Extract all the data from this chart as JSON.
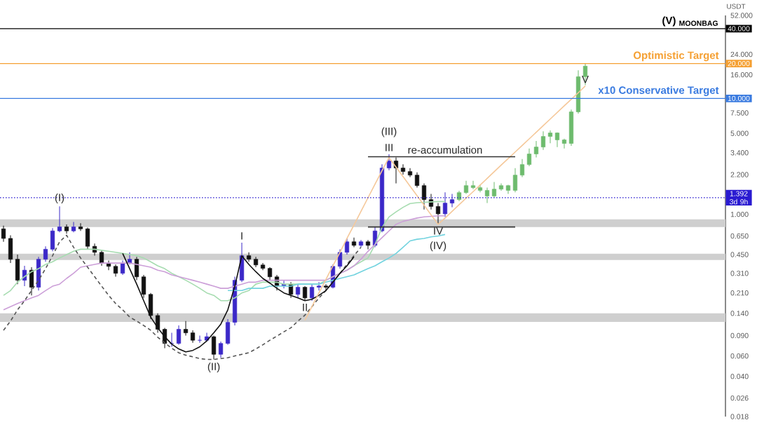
{
  "chart_data": {
    "type": "candlestick",
    "log": "y",
    "tick_labels": "y",
    "categories": [
      null,
      null,
      null,
      null,
      null,
      null,
      null,
      null,
      null,
      null,
      null,
      null,
      null,
      null,
      null,
      null,
      null,
      null,
      null,
      null,
      null,
      null,
      null,
      null,
      null,
      null,
      null,
      null,
      null,
      null,
      null,
      null,
      null,
      null,
      null,
      null,
      null,
      null,
      null,
      null,
      null,
      null,
      null,
      null,
      null,
      null,
      null,
      null,
      null,
      null,
      null,
      null,
      null,
      null,
      null,
      null,
      null,
      null,
      null,
      null,
      null,
      null,
      null,
      null,
      null,
      null,
      null,
      null,
      null,
      null,
      null,
      null,
      null,
      null,
      null,
      null,
      null,
      null,
      null,
      null,
      null,
      null,
      null,
      null
    ],
    "ylim": [
      0.018,
      52
    ],
    "yticks": [
      {
        "value": 0.018,
        "label": "0.018"
      },
      {
        "value": 0.026,
        "label": "0.026"
      },
      {
        "value": 0.04,
        "label": "0.040"
      },
      {
        "value": 0.06,
        "label": "0.060"
      },
      {
        "value": 0.09,
        "label": "0.090"
      },
      {
        "value": 0.14,
        "label": "0.140"
      },
      {
        "value": 0.21,
        "label": "0.210"
      },
      {
        "value": 0.31,
        "label": "0.310"
      },
      {
        "value": 0.45,
        "label": "0.450"
      },
      {
        "value": 0.65,
        "label": "0.650"
      },
      {
        "value": 1,
        "label": "1.000"
      },
      {
        "value": 2.2,
        "label": "2.200"
      },
      {
        "value": 3.4,
        "label": "3.400"
      },
      {
        "value": 5,
        "label": "5.000"
      },
      {
        "value": 7.5,
        "label": "7.500"
      },
      {
        "value": 16,
        "label": "16.000"
      },
      {
        "value": 24,
        "label": "24.000"
      },
      {
        "value": 52,
        "label": "52.000"
      }
    ],
    "bands": [
      {
        "axis": "y",
        "from": 0.778,
        "to": 0.907,
        "color": "#cfcfcf"
      },
      {
        "axis": "y",
        "from": 0.404,
        "to": 0.458,
        "color": "#cfcfcf"
      },
      {
        "axis": "y",
        "from": 0.118,
        "to": 0.14,
        "color": "#cfcfcf"
      }
    ],
    "ohlc": [
      [
        0.75,
        0.8,
        0.58,
        0.62
      ],
      [
        0.62,
        0.66,
        0.38,
        0.41
      ],
      [
        0.41,
        0.45,
        0.25,
        0.27
      ],
      [
        0.27,
        0.36,
        0.24,
        0.33
      ],
      [
        0.33,
        0.35,
        0.2,
        0.235
      ],
      [
        0.235,
        0.43,
        0.22,
        0.41
      ],
      [
        0.41,
        0.53,
        0.39,
        0.5
      ],
      [
        0.5,
        0.76,
        0.48,
        0.72
      ],
      [
        0.72,
        1.17,
        0.7,
        0.78
      ],
      [
        0.78,
        0.82,
        0.68,
        0.72
      ],
      [
        0.72,
        0.86,
        0.7,
        0.78
      ],
      [
        0.78,
        0.84,
        0.72,
        0.75
      ],
      [
        0.75,
        0.77,
        0.5,
        0.53
      ],
      [
        0.53,
        0.56,
        0.44,
        0.47
      ],
      [
        0.47,
        0.49,
        0.36,
        0.38
      ],
      [
        0.38,
        0.4,
        0.33,
        0.356
      ],
      [
        0.356,
        0.37,
        0.29,
        0.31
      ],
      [
        0.31,
        0.4,
        0.3,
        0.38
      ],
      [
        0.38,
        0.47,
        0.37,
        0.41
      ],
      [
        0.41,
        0.43,
        0.27,
        0.289
      ],
      [
        0.289,
        0.3,
        0.19,
        0.204
      ],
      [
        0.204,
        0.21,
        0.125,
        0.134
      ],
      [
        0.134,
        0.14,
        0.095,
        0.102
      ],
      [
        0.102,
        0.105,
        0.07,
        0.077
      ],
      [
        0.077,
        0.095,
        0.072,
        0.077
      ],
      [
        0.077,
        0.11,
        0.075,
        0.102
      ],
      [
        0.102,
        0.12,
        0.09,
        0.095
      ],
      [
        0.095,
        0.1,
        0.078,
        0.082
      ],
      [
        0.082,
        0.09,
        0.078,
        0.082
      ],
      [
        0.082,
        0.095,
        0.08,
        0.088
      ],
      [
        0.088,
        0.09,
        0.056,
        0.062
      ],
      [
        0.062,
        0.08,
        0.058,
        0.077
      ],
      [
        0.077,
        0.125,
        0.075,
        0.117
      ],
      [
        0.117,
        0.29,
        0.11,
        0.27
      ],
      [
        0.27,
        0.57,
        0.26,
        0.44
      ],
      [
        0.44,
        0.47,
        0.39,
        0.41
      ],
      [
        0.41,
        0.43,
        0.35,
        0.366
      ],
      [
        0.366,
        0.38,
        0.33,
        0.342
      ],
      [
        0.342,
        0.35,
        0.27,
        0.289
      ],
      [
        0.289,
        0.3,
        0.22,
        0.241
      ],
      [
        0.241,
        0.27,
        0.23,
        0.25
      ],
      [
        0.25,
        0.26,
        0.19,
        0.204
      ],
      [
        0.204,
        0.25,
        0.19,
        0.235
      ],
      [
        0.235,
        0.24,
        0.18,
        0.19
      ],
      [
        0.19,
        0.25,
        0.18,
        0.235
      ],
      [
        0.235,
        0.26,
        0.22,
        0.241
      ],
      [
        0.241,
        0.25,
        0.22,
        0.235
      ],
      [
        0.235,
        0.37,
        0.23,
        0.356
      ],
      [
        0.356,
        0.5,
        0.34,
        0.47
      ],
      [
        0.47,
        0.62,
        0.45,
        0.58
      ],
      [
        0.58,
        0.63,
        0.52,
        0.54
      ],
      [
        0.54,
        0.6,
        0.52,
        0.58
      ],
      [
        0.58,
        0.6,
        0.5,
        0.54
      ],
      [
        0.54,
        0.78,
        0.52,
        0.72
      ],
      [
        0.72,
        2.7,
        0.7,
        2.51
      ],
      [
        2.51,
        3.3,
        2.4,
        2.89
      ],
      [
        2.89,
        3.1,
        1.85,
        2.51
      ],
      [
        2.51,
        2.7,
        2.2,
        2.34
      ],
      [
        2.34,
        2.5,
        2.1,
        2.18
      ],
      [
        2.18,
        2.3,
        1.7,
        1.77
      ],
      [
        1.77,
        1.85,
        1.1,
        1.34
      ],
      [
        1.34,
        1.5,
        1.1,
        1.17
      ],
      [
        1.17,
        1.25,
        0.82,
        1.01
      ],
      [
        1.01,
        1.55,
        0.95,
        1.25
      ],
      [
        1.25,
        1.5,
        1.15,
        1.34
      ],
      [
        1.34,
        1.6,
        1.3,
        1.54
      ],
      [
        1.54,
        1.95,
        1.5,
        1.77
      ],
      [
        1.77,
        1.95,
        1.65,
        1.7
      ],
      [
        1.7,
        1.8,
        1.55,
        1.61
      ],
      [
        1.61,
        1.7,
        1.25,
        1.44
      ],
      [
        1.44,
        1.9,
        1.4,
        1.65
      ],
      [
        1.65,
        1.85,
        1.6,
        1.77
      ],
      [
        1.77,
        1.8,
        1.5,
        1.61
      ],
      [
        1.61,
        2.5,
        1.55,
        2.18
      ],
      [
        2.18,
        3.0,
        2.1,
        2.69
      ],
      [
        2.69,
        3.7,
        2.6,
        3.32
      ],
      [
        3.32,
        4.3,
        3.1,
        3.81
      ],
      [
        3.81,
        5.2,
        3.6,
        4.7
      ],
      [
        4.7,
        5.3,
        4.1,
        5.04
      ],
      [
        5.04,
        5.1,
        3.8,
        4.39
      ],
      [
        4.39,
        4.5,
        3.7,
        4.09
      ],
      [
        4.09,
        8.0,
        3.9,
        7.66
      ],
      [
        7.66,
        17.5,
        7.4,
        15.4
      ],
      [
        15.4,
        20.0,
        13.0,
        19.0
      ]
    ],
    "colors": [
      "#111111",
      "#111111",
      "#111111",
      "#3b28c8",
      "#111111",
      "#3b28c8",
      "#3b28c8",
      "#3b28c8",
      "#3b28c8",
      "#111111",
      "#3b28c8",
      "#111111",
      "#111111",
      "#111111",
      "#111111",
      "#111111",
      "#111111",
      "#3b28c8",
      "#3b28c8",
      "#111111",
      "#111111",
      "#111111",
      "#111111",
      "#111111",
      "#3b28c8",
      "#3b28c8",
      "#111111",
      "#111111",
      "#3b28c8",
      "#3b28c8",
      "#111111",
      "#3b28c8",
      "#3b28c8",
      "#3b28c8",
      "#3b28c8",
      "#111111",
      "#111111",
      "#111111",
      "#111111",
      "#111111",
      "#3b28c8",
      "#111111",
      "#3b28c8",
      "#111111",
      "#3b28c8",
      "#3b28c8",
      "#111111",
      "#3b28c8",
      "#3b28c8",
      "#3b28c8",
      "#111111",
      "#3b28c8",
      "#111111",
      "#3b28c8",
      "#3b28c8",
      "#3b28c8",
      "#111111",
      "#111111",
      "#111111",
      "#111111",
      "#111111",
      "#111111",
      "#111111",
      "#3b28c8",
      "#3b28c8",
      "#6dbb6d",
      "#6dbb6d",
      "#6dbb6d",
      "#6dbb6d",
      "#6dbb6d",
      "#6dbb6d",
      "#6dbb6d",
      "#6dbb6d",
      "#6dbb6d",
      "#6dbb6d",
      "#6dbb6d",
      "#6dbb6d",
      "#6dbb6d",
      "#6dbb6d",
      "#6dbb6d",
      "#6dbb6d",
      "#6dbb6d",
      "#6dbb6d",
      "#6dbb6d"
    ],
    "series": [
      {
        "type": "line",
        "color": "#a6dcb0",
        "values": [
          0.2,
          0.22,
          0.26,
          0.29,
          0.32,
          0.34,
          0.37,
          0.39,
          0.42,
          0.45,
          0.48,
          0.5,
          0.5,
          0.5,
          0.49,
          0.48,
          0.47,
          0.46,
          0.45,
          0.44,
          0.42,
          0.39,
          0.36,
          0.34,
          0.31,
          0.29,
          0.27,
          0.25,
          0.23,
          0.21,
          0.2,
          0.18,
          0.18,
          0.19,
          0.21,
          0.22,
          0.25,
          0.26,
          0.26,
          0.26,
          0.25,
          0.25,
          0.25,
          0.25,
          0.25,
          0.25,
          0.27,
          0.29,
          0.31,
          0.33,
          0.36,
          0.39,
          0.42,
          0.55,
          0.77,
          0.95,
          1.05,
          1.15,
          1.24,
          1.26,
          1.27,
          1.28,
          1.29,
          1.29,
          null,
          null,
          null,
          null,
          null,
          null,
          null,
          null,
          null,
          null,
          null,
          null,
          null,
          null,
          null,
          null,
          null,
          null,
          null,
          null
        ]
      },
      {
        "type": "line",
        "color": "#cc9fd8",
        "values": [
          0.15,
          0.16,
          0.17,
          0.18,
          0.19,
          0.2,
          0.22,
          0.24,
          0.25,
          0.28,
          0.31,
          0.35,
          0.36,
          0.37,
          0.38,
          0.38,
          0.38,
          0.38,
          0.38,
          0.37,
          0.36,
          0.35,
          0.33,
          0.32,
          0.3,
          0.29,
          0.28,
          0.27,
          0.26,
          0.25,
          0.24,
          0.23,
          0.23,
          0.24,
          0.25,
          0.26,
          0.26,
          0.27,
          0.27,
          0.27,
          0.27,
          0.27,
          0.27,
          0.27,
          0.27,
          0.27,
          0.27,
          0.29,
          0.31,
          0.33,
          0.36,
          0.41,
          0.48,
          0.55,
          0.63,
          0.72,
          0.82,
          0.87,
          0.9,
          0.93,
          0.95,
          0.96,
          0.97,
          0.97,
          null,
          null,
          null,
          null,
          null,
          null,
          null,
          null,
          null,
          null,
          null,
          null,
          null,
          null,
          null,
          null,
          null,
          null,
          null,
          null
        ]
      },
      {
        "type": "line",
        "color": "#72d3df",
        "values": [
          null,
          null,
          null,
          null,
          null,
          null,
          null,
          null,
          null,
          null,
          null,
          null,
          null,
          null,
          null,
          null,
          null,
          null,
          null,
          null,
          null,
          null,
          null,
          null,
          null,
          null,
          null,
          null,
          null,
          null,
          null,
          null,
          0.22,
          0.22,
          0.22,
          0.23,
          0.23,
          0.23,
          0.24,
          0.24,
          0.24,
          0.24,
          0.25,
          0.25,
          0.25,
          0.25,
          0.26,
          0.27,
          0.28,
          0.29,
          0.3,
          0.32,
          0.34,
          0.36,
          0.39,
          0.42,
          0.46,
          0.52,
          0.59,
          0.61,
          0.62,
          0.64,
          0.65,
          0.67,
          null,
          null,
          null,
          null,
          null,
          null,
          null,
          null,
          null,
          null,
          null,
          null,
          null,
          null,
          null,
          null,
          null,
          null,
          null,
          null
        ]
      },
      {
        "type": "line",
        "color": "#555555",
        "line_style": "dashed",
        "values": [
          0.1,
          0.12,
          0.15,
          0.18,
          0.22,
          0.27,
          0.34,
          0.44,
          0.58,
          0.66,
          0.52,
          0.42,
          0.35,
          0.29,
          0.24,
          0.2,
          0.17,
          0.15,
          0.13,
          0.12,
          0.11,
          0.1,
          0.087,
          0.078,
          0.07,
          0.064,
          0.061,
          0.059,
          0.057,
          0.056,
          0.056,
          0.057,
          0.058,
          0.06,
          0.062,
          0.064,
          0.069,
          0.075,
          0.082,
          0.089,
          0.097,
          0.105,
          0.12,
          0.135,
          0.16,
          0.19,
          0.22,
          0.26,
          0.31,
          0.37,
          0.44,
          0.52,
          null,
          null,
          null,
          null,
          null,
          null,
          null,
          null,
          null,
          null,
          null,
          null,
          null,
          null,
          null,
          null,
          null,
          null,
          null,
          null,
          null,
          null,
          null,
          null,
          null,
          null,
          null,
          null,
          null,
          null,
          null,
          null
        ]
      },
      {
        "type": "line",
        "color": "#111111",
        "values": [
          null,
          null,
          null,
          null,
          null,
          null,
          null,
          null,
          null,
          null,
          null,
          null,
          null,
          null,
          null,
          null,
          null,
          0.46,
          0.34,
          0.25,
          0.18,
          0.13,
          0.105,
          0.088,
          0.076,
          0.069,
          0.065,
          0.067,
          0.072,
          0.081,
          0.095,
          0.113,
          0.15,
          0.24,
          0.439,
          0.37,
          0.32,
          0.28,
          0.255,
          0.23,
          0.21,
          0.2,
          0.19,
          0.18,
          0.185,
          0.2,
          0.22,
          0.26,
          0.31,
          0.36,
          0.43,
          null,
          null,
          null,
          null,
          null,
          null,
          null,
          null,
          null,
          null,
          null,
          null,
          null,
          null,
          null,
          null,
          null,
          null,
          null,
          null,
          null,
          null,
          null,
          null,
          null,
          null,
          null,
          null,
          null,
          null,
          null,
          null,
          null
        ]
      },
      {
        "type": "line",
        "color": "#f5c89a",
        "values": [
          null,
          null,
          null,
          null,
          null,
          null,
          null,
          null,
          null,
          null,
          null,
          null,
          null,
          null,
          null,
          null,
          null,
          null,
          null,
          null,
          null,
          null,
          null,
          null,
          null,
          null,
          null,
          null,
          null,
          null,
          null,
          null,
          null,
          null,
          null,
          null,
          null,
          null,
          null,
          null,
          null,
          null,
          null,
          0.122,
          0.16,
          0.21,
          0.275,
          0.36,
          0.47,
          0.62,
          0.81,
          1.06,
          1.39,
          1.82,
          2.38,
          3.09,
          2.56,
          2.12,
          1.75,
          1.45,
          1.2,
          0.99,
          0.82,
          0.93,
          1.06,
          1.21,
          1.38,
          1.57,
          1.79,
          2.04,
          2.33,
          2.66,
          3.03,
          3.45,
          3.93,
          4.48,
          5.11,
          5.82,
          6.64,
          7.57,
          8.63,
          9.83,
          11.2,
          12.8
        ]
      },
      {
        "type": "line",
        "color": "#333333",
        "values": [
          null,
          null,
          null,
          null,
          null,
          null,
          null,
          null,
          null,
          null,
          null,
          null,
          null,
          null,
          null,
          null,
          null,
          null,
          null,
          null,
          null,
          null,
          null,
          null,
          null,
          null,
          null,
          null,
          null,
          null,
          null,
          null,
          null,
          null,
          null,
          null,
          null,
          null,
          null,
          null,
          null,
          null,
          null,
          null,
          null,
          null,
          null,
          null,
          null,
          null,
          null,
          null,
          3.14,
          3.14,
          3.14,
          3.14,
          3.14,
          3.14,
          3.14,
          3.14,
          3.14,
          3.14,
          3.14,
          3.14,
          3.14,
          3.14,
          3.14,
          3.14,
          3.14,
          3.14,
          3.14,
          3.14,
          3.14,
          3.14,
          null,
          null,
          null,
          null,
          null,
          null,
          null,
          null,
          null,
          null
        ]
      },
      {
        "type": "line",
        "color": "#333333",
        "values": [
          null,
          null,
          null,
          null,
          null,
          null,
          null,
          null,
          null,
          null,
          null,
          null,
          null,
          null,
          null,
          null,
          null,
          null,
          null,
          null,
          null,
          null,
          null,
          null,
          null,
          null,
          null,
          null,
          null,
          null,
          null,
          null,
          null,
          null,
          null,
          null,
          null,
          null,
          null,
          null,
          null,
          null,
          null,
          null,
          null,
          null,
          null,
          null,
          null,
          null,
          null,
          null,
          0.778,
          0.778,
          0.778,
          0.778,
          0.778,
          0.778,
          0.778,
          0.778,
          0.778,
          0.778,
          0.778,
          0.778,
          0.778,
          0.778,
          0.778,
          0.778,
          0.778,
          0.778,
          0.778,
          0.778,
          0.778,
          0.778,
          null,
          null,
          null,
          null,
          null,
          null,
          null,
          null,
          null,
          null
        ]
      }
    ],
    "ref_lines": [
      {
        "axis": "y",
        "value": 40,
        "color": "#000000",
        "label": "40.000"
      },
      {
        "axis": "y",
        "value": 20,
        "color": "#f5a033",
        "label": "20.000"
      },
      {
        "axis": "y",
        "value": 10,
        "color": "#3a7be0",
        "label": "10.000"
      },
      {
        "axis": "y",
        "value": 1.392,
        "color": "#2a1bd1",
        "line_style": "dotted",
        "label": "1.392 3d 9h"
      }
    ],
    "annotations": [
      "USDT",
      {
        "text": "(I)",
        "y": 1.17
      },
      {
        "text": "(II)",
        "y": 0.056
      },
      {
        "text": "III",
        "y": 3.3
      },
      {
        "text": "(III)",
        "y": 3.3
      },
      {
        "text": "IV",
        "y": 0.82
      },
      {
        "text": "(IV)",
        "y": 0.82
      },
      {
        "text": "I",
        "y": 0.57
      },
      {
        "text": "II",
        "y": 0.18
      },
      {
        "text": "V",
        "y": 12.8
      },
      {
        "text": "re-accumulation",
        "y": 3.14
      },
      {
        "text": "(V) $_{MOONBAG}$",
        "y": 40
      },
      {
        "text": "Optimistic Target",
        "y": 20
      },
      {
        "text": "x10 Conservative Target",
        "y": 10
      }
    ]
  }
}
